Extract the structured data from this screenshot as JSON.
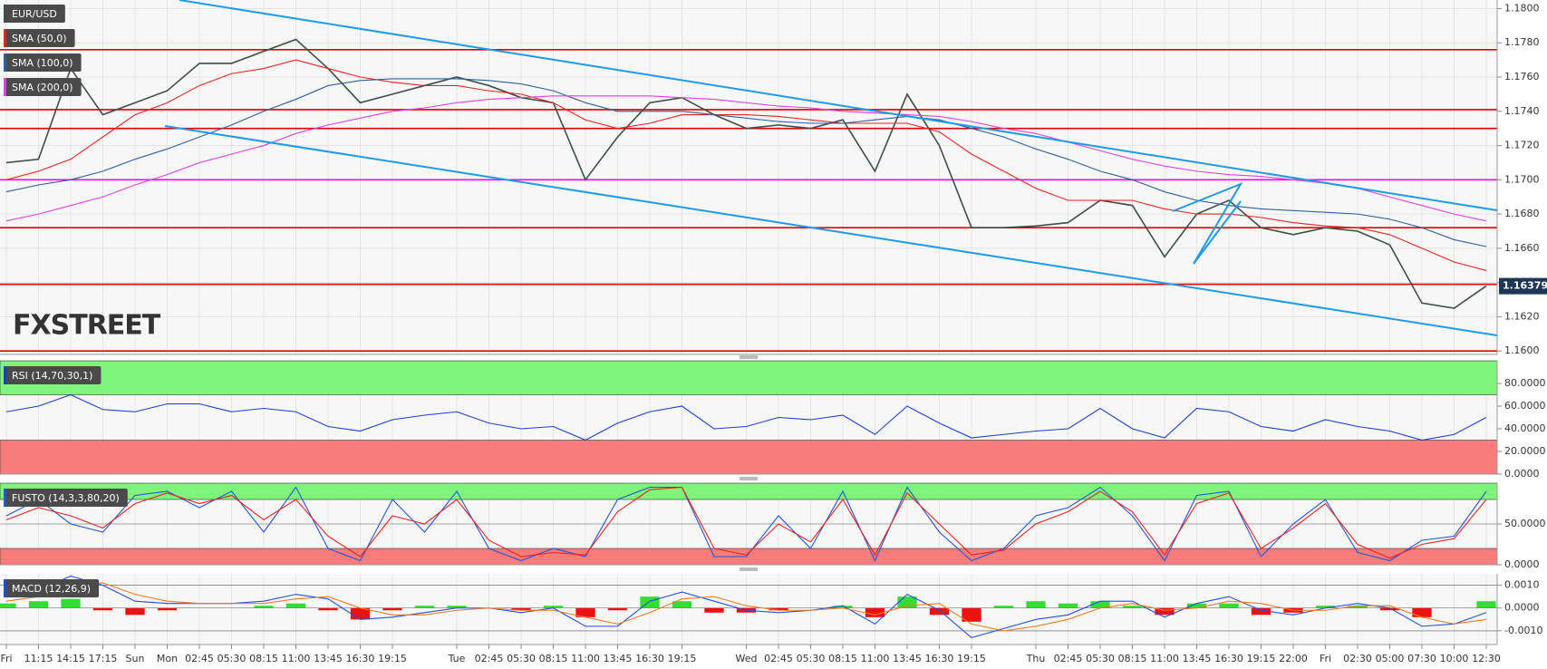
{
  "chart_data": [
    {
      "type": "line",
      "series": [
        {
          "name": "EUR/USD",
          "color": "#3d4f46",
          "values": [
            1.171,
            1.1712,
            1.1765,
            1.1738,
            1.1745,
            1.1752,
            1.1768,
            1.1768,
            1.1775,
            1.1782,
            1.1765,
            1.1745,
            1.175,
            1.1755,
            1.176,
            1.1755,
            1.1748,
            1.1745,
            1.17,
            1.1725,
            1.1745,
            1.1748,
            1.1738,
            1.173,
            1.1732,
            1.173,
            1.1735,
            1.1705,
            1.175,
            1.172,
            1.1672,
            1.1672,
            1.1673,
            1.1675,
            1.1688,
            1.1685,
            1.1655,
            1.168,
            1.1688,
            1.1672,
            1.1668,
            1.1672,
            1.167,
            1.1662,
            1.1628,
            1.1625,
            1.1638
          ]
        },
        {
          "name": "SMA (50,0)",
          "color": "#e8231f",
          "values": [
            1.17,
            1.1705,
            1.1712,
            1.1725,
            1.1738,
            1.1745,
            1.1755,
            1.1762,
            1.1765,
            1.177,
            1.1765,
            1.176,
            1.1757,
            1.1755,
            1.1755,
            1.1752,
            1.175,
            1.1745,
            1.1735,
            1.173,
            1.1733,
            1.1738,
            1.1738,
            1.1738,
            1.1737,
            1.1735,
            1.1733,
            1.1733,
            1.1733,
            1.1728,
            1.1715,
            1.1705,
            1.1695,
            1.1688,
            1.1688,
            1.1688,
            1.1683,
            1.168,
            1.168,
            1.1678,
            1.1675,
            1.1673,
            1.1672,
            1.1668,
            1.166,
            1.1652,
            1.1647
          ]
        },
        {
          "name": "SMA (100,0)",
          "color": "#2a5fa5",
          "values": [
            1.1693,
            1.1697,
            1.17,
            1.1705,
            1.1712,
            1.1718,
            1.1725,
            1.1732,
            1.174,
            1.1747,
            1.1755,
            1.1758,
            1.1759,
            1.1759,
            1.1759,
            1.1758,
            1.1756,
            1.1752,
            1.1745,
            1.174,
            1.174,
            1.174,
            1.1738,
            1.1736,
            1.1734,
            1.1733,
            1.1733,
            1.1735,
            1.1737,
            1.1735,
            1.173,
            1.1725,
            1.1718,
            1.1712,
            1.1705,
            1.17,
            1.1693,
            1.1688,
            1.1685,
            1.1683,
            1.1682,
            1.1681,
            1.168,
            1.1677,
            1.1672,
            1.1665,
            1.1661
          ]
        },
        {
          "name": "SMA (200,0)",
          "color": "#e040e0",
          "values": [
            1.1676,
            1.168,
            1.1685,
            1.169,
            1.1697,
            1.1703,
            1.171,
            1.1715,
            1.172,
            1.1727,
            1.1732,
            1.1736,
            1.174,
            1.1742,
            1.1745,
            1.1747,
            1.1748,
            1.1749,
            1.1749,
            1.1749,
            1.1749,
            1.1748,
            1.1747,
            1.1745,
            1.1743,
            1.1742,
            1.174,
            1.1739,
            1.1738,
            1.1737,
            1.1734,
            1.173,
            1.1727,
            1.1722,
            1.1717,
            1.1712,
            1.1708,
            1.1705,
            1.1703,
            1.1702,
            1.17,
            1.1698,
            1.1695,
            1.169,
            1.1685,
            1.168,
            1.1676
          ]
        }
      ],
      "levels": [
        {
          "value": 1.1776,
          "color": "#e00000"
        },
        {
          "value": 1.1741,
          "color": "#e00000"
        },
        {
          "value": 1.173,
          "color": "#e00000"
        },
        {
          "value": 1.17,
          "color": "#ff00ff"
        },
        {
          "value": 1.1672,
          "color": "#e00000"
        },
        {
          "value": 1.1639,
          "color": "#e00000"
        },
        {
          "value": 1.16,
          "color": "#e00000"
        }
      ],
      "last_price": 1.16379,
      "ylim": [
        1.1598,
        1.1805
      ],
      "yticks": [
        {
          "value": 1.16,
          "label": "1.1600"
        },
        {
          "value": 1.162,
          "label": "1.1620"
        },
        {
          "value": 1.164,
          "label": "1.1640"
        },
        {
          "value": 1.166,
          "label": "1.1660"
        },
        {
          "value": 1.168,
          "label": "1.1680"
        },
        {
          "value": 1.17,
          "label": "1.1700"
        },
        {
          "value": 1.172,
          "label": "1.1720"
        },
        {
          "value": 1.174,
          "label": "1.1740"
        },
        {
          "value": 1.176,
          "label": "1.1760"
        },
        {
          "value": 1.178,
          "label": "1.1780"
        },
        {
          "value": 1.18,
          "label": "1.1800"
        }
      ],
      "grid": true
    },
    {
      "type": "line",
      "title": "RSI (14,70,30,1)",
      "series": [
        {
          "color": "#1a3fd0",
          "values": [
            55,
            60,
            70,
            57,
            55,
            62,
            62,
            55,
            58,
            55,
            42,
            38,
            48,
            52,
            55,
            45,
            40,
            42,
            30,
            45,
            55,
            60,
            40,
            42,
            50,
            48,
            52,
            35,
            60,
            45,
            32,
            35,
            38,
            40,
            58,
            40,
            32,
            58,
            55,
            42,
            38,
            48,
            42,
            38,
            30,
            35,
            50
          ]
        }
      ],
      "bands": [
        {
          "from": 70,
          "to": 100,
          "color": "#7ef57a"
        },
        {
          "from": 0,
          "to": 30,
          "color": "#f77c7c"
        }
      ],
      "ylim": [
        0,
        100
      ],
      "yticks": [
        {
          "value": 0,
          "label": "0.0000"
        },
        {
          "value": 20,
          "label": "20.0000"
        },
        {
          "value": 40,
          "label": "40.0000"
        },
        {
          "value": 60,
          "label": "60.0000"
        },
        {
          "value": 80,
          "label": "80.0000"
        }
      ],
      "grid": false
    },
    {
      "type": "line",
      "title": "FUSTO (14,3,3,80,20)",
      "series": [
        {
          "color": "#2255dd",
          "values": [
            60,
            80,
            50,
            40,
            85,
            90,
            70,
            90,
            40,
            95,
            20,
            5,
            80,
            40,
            90,
            20,
            5,
            20,
            10,
            80,
            95,
            95,
            10,
            10,
            60,
            20,
            90,
            5,
            95,
            40,
            5,
            20,
            60,
            70,
            95,
            60,
            5,
            85,
            90,
            10,
            50,
            80,
            15,
            5,
            30,
            35,
            90
          ]
        },
        {
          "color": "#e8231f",
          "values": [
            55,
            70,
            60,
            45,
            75,
            88,
            75,
            85,
            55,
            80,
            35,
            10,
            60,
            50,
            80,
            30,
            10,
            15,
            12,
            65,
            92,
            95,
            20,
            12,
            50,
            28,
            80,
            12,
            88,
            50,
            12,
            18,
            50,
            65,
            90,
            65,
            12,
            75,
            88,
            20,
            45,
            75,
            25,
            8,
            25,
            32,
            80
          ]
        }
      ],
      "bands": [
        {
          "from": 80,
          "to": 100,
          "color": "#7ef57a"
        },
        {
          "from": 0,
          "to": 20,
          "color": "#f77c7c"
        }
      ],
      "ylim": [
        0,
        100
      ],
      "yticks": [
        {
          "value": 0,
          "label": "0.0000"
        },
        {
          "value": 50,
          "label": "50.0000"
        }
      ],
      "grid": true
    },
    {
      "type": "line",
      "title": "MACD (12,26,9)",
      "categories": [
        "Fri",
        "11:15",
        "14:15",
        "17:15",
        "Sun",
        "Mon",
        "02:45",
        "05:30",
        "08:15",
        "11:00",
        "13:45",
        "16:30",
        "19:15",
        null,
        "Tue",
        "02:45",
        "05:30",
        "08:15",
        "11:00",
        "13:45",
        "16:30",
        "19:15",
        null,
        "Wed",
        "02:45",
        "05:30",
        "08:15",
        "11:00",
        "13:45",
        "16:30",
        "19:15",
        null,
        "Thu",
        "02:45",
        "05:30",
        "08:15",
        "11:00",
        "13:45",
        "16:30",
        "19:15",
        "22:00",
        "Fri",
        "02:30",
        "05:00",
        "07:30",
        "10:00",
        "12:30"
      ],
      "series": [
        {
          "type": "bar",
          "color": "#33dd33",
          "negative_color": "#ee1111",
          "values": [
            0.0002,
            0.0003,
            0.0004,
            -0.0001,
            -0.0003,
            -0.0001,
            0,
            0,
            0.0001,
            0.0002,
            -0.0001,
            -0.0005,
            -0.0001,
            0.0001,
            0.0001,
            0,
            -0.0001,
            0.0001,
            -0.0004,
            -0.0001,
            0.0005,
            0.0003,
            -0.0002,
            -0.0002,
            -0.0001,
            0,
            0.0001,
            -0.0004,
            0.0005,
            -0.0003,
            -0.0006,
            0.0001,
            0.0003,
            0.0002,
            0.0003,
            0.0001,
            -0.0003,
            0.0002,
            0.0002,
            -0.0003,
            -0.0002,
            0.0001,
            0.0001,
            -0.0001,
            -0.0004,
            0,
            0.0003
          ]
        },
        {
          "color": "#1f4fe0",
          "values": [
            0.0005,
            0.0008,
            0.0014,
            0.001,
            0.0003,
            0.0002,
            0.0002,
            0.0002,
            0.0003,
            0.0006,
            0.0004,
            -0.0005,
            -0.0004,
            -0.0002,
            0,
            0,
            -0.0002,
            0,
            -0.0008,
            -0.0008,
            0.0003,
            0.0007,
            0.0003,
            -0.0001,
            -0.0002,
            -0.0001,
            0.0001,
            -0.0007,
            0.0006,
            -0.0001,
            -0.0013,
            -0.0009,
            -0.0005,
            -0.0003,
            0.0003,
            0.0003,
            -0.0004,
            0.0002,
            0.0005,
            -0.0001,
            -0.0003,
            0,
            0.0002,
            0,
            -0.0008,
            -0.0007,
            -0.0002
          ]
        },
        {
          "color": "#f07a20",
          "values": [
            0.0003,
            0.0005,
            0.001,
            0.0011,
            0.0006,
            0.0003,
            0.0002,
            0.0002,
            0.0002,
            0.0004,
            0.0005,
            0,
            -0.0003,
            -0.0003,
            -0.0001,
            0,
            -0.0001,
            -0.0001,
            -0.0004,
            -0.0007,
            -0.0002,
            0.0004,
            0.0005,
            0.0001,
            -0.0001,
            -0.0001,
            0,
            -0.0003,
            0.0001,
            0.0002,
            -0.0007,
            -0.001,
            -0.0008,
            -0.0005,
            0,
            0.0002,
            -0.0001,
            0,
            0.0003,
            0.0002,
            -0.0001,
            -0.0001,
            0.0001,
            0.0001,
            -0.0004,
            -0.0007,
            -0.0005
          ]
        }
      ],
      "ylim": [
        -0.0016,
        0.0015
      ],
      "yticks": [
        {
          "value": -0.001,
          "label": "-0.0010"
        },
        {
          "value": 0,
          "label": "0.0000"
        },
        {
          "value": 0.001,
          "label": "0.0010"
        }
      ],
      "grid": true
    }
  ],
  "watermark": "FXSTREET"
}
